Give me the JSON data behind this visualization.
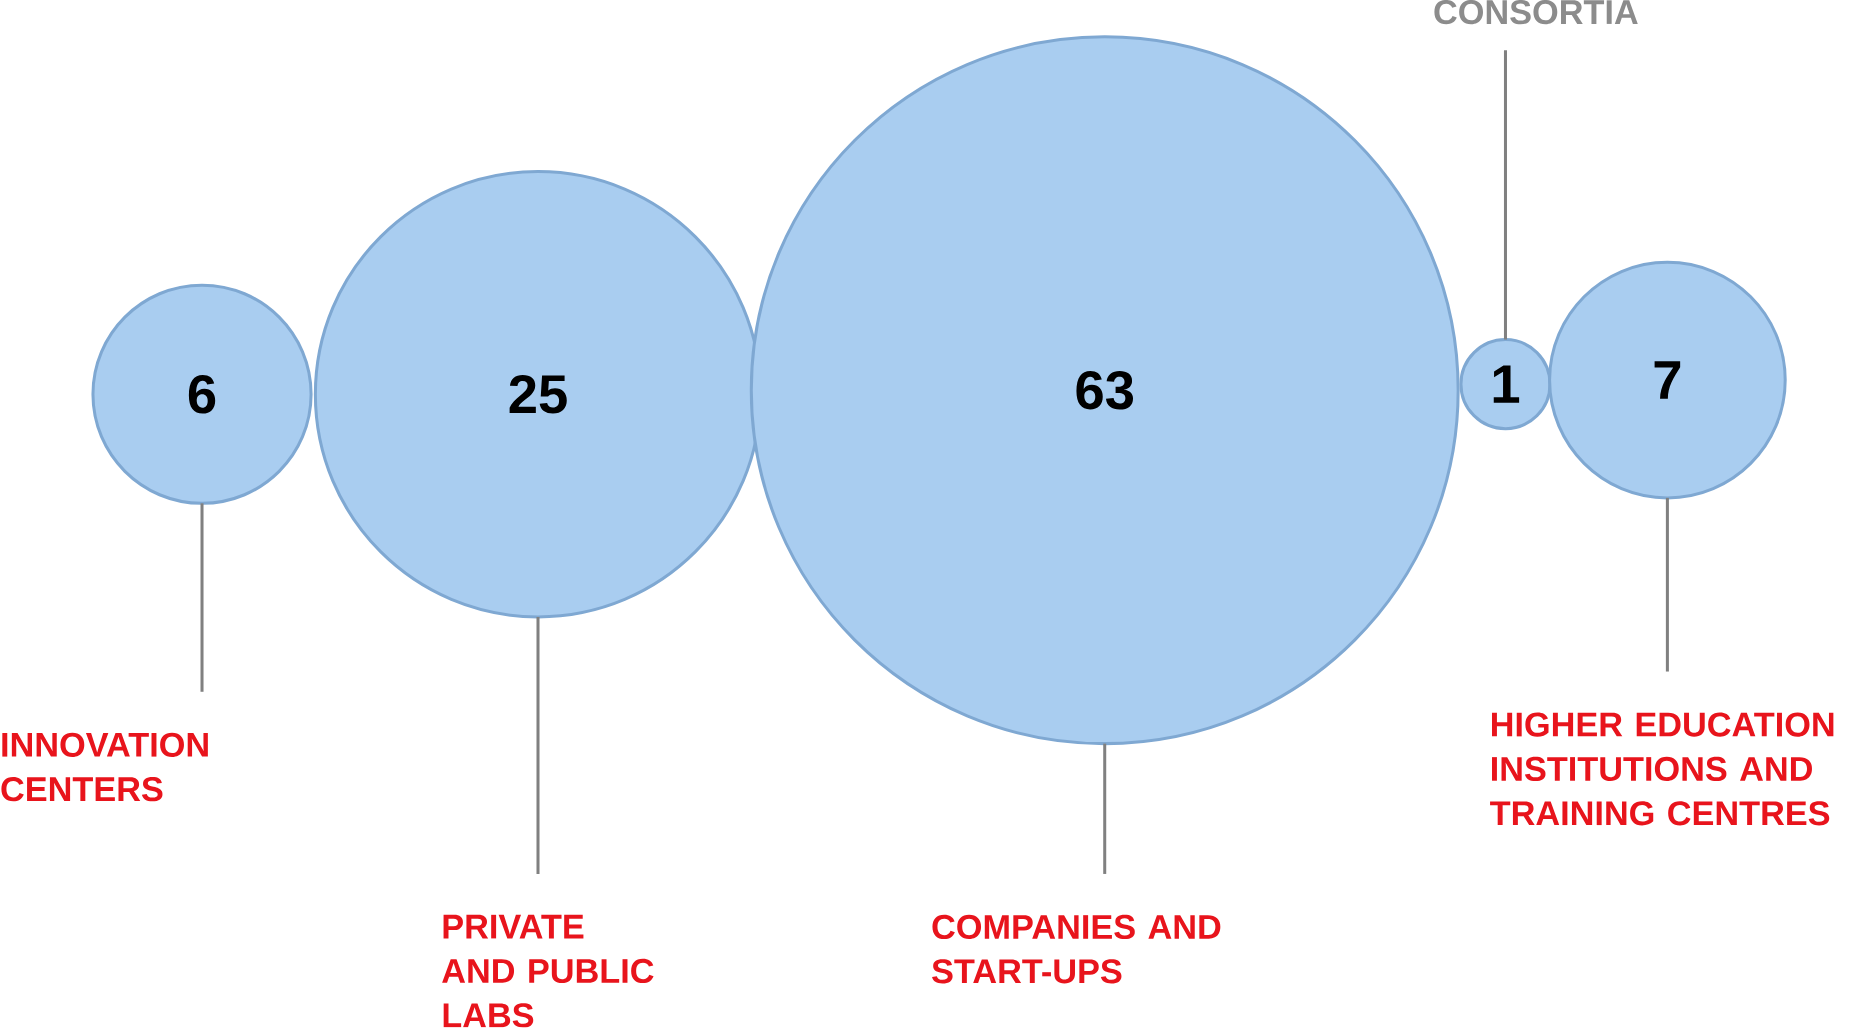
{
  "chart_data": {
    "type": "other",
    "categories": [
      "INNOVATION CENTERS",
      "PRIVATE AND PUBLIC LABS",
      "COMPANIES AND START-UPS",
      "CONSORTIA",
      "HIGHER EDUCATION INSTITUTIONS AND TRAINING CENTRES"
    ],
    "values": [
      6,
      25,
      63,
      1,
      7
    ],
    "color": "#a9cdf0",
    "data_labels": true
  }
}
